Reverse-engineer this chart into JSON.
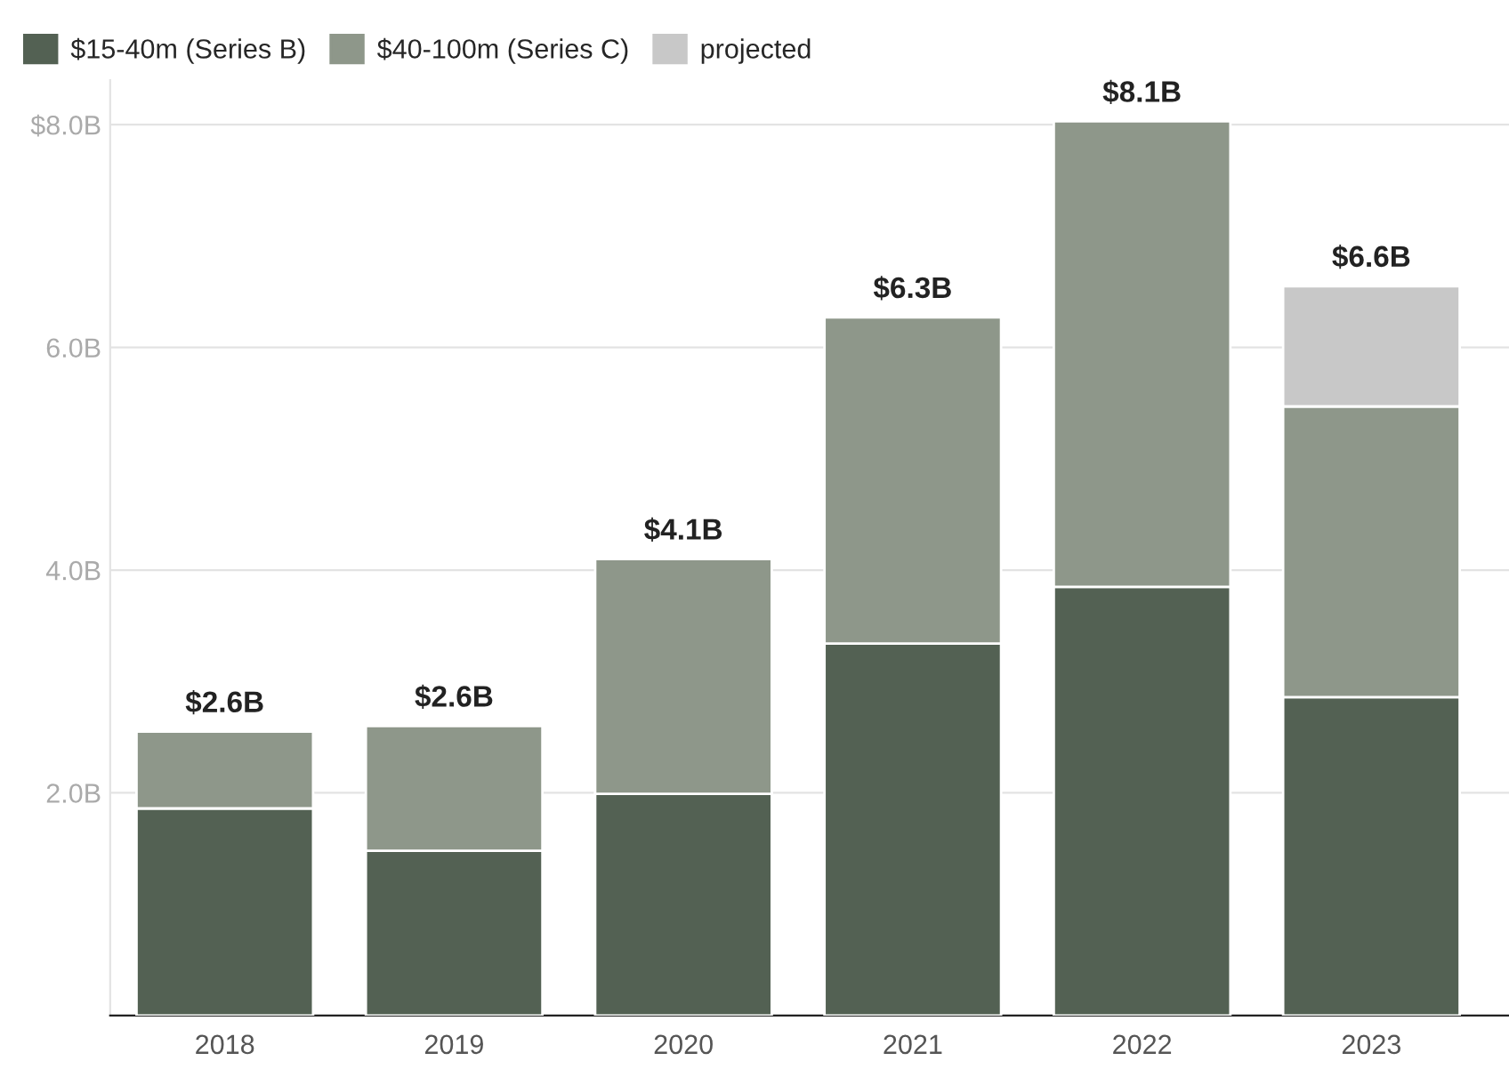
{
  "chart_data": {
    "type": "bar",
    "stacked": true,
    "categories": [
      "2018",
      "2019",
      "2020",
      "2021",
      "2022",
      "2023"
    ],
    "series": [
      {
        "name": "$15-40m (Series B)",
        "color": "#536153",
        "values": [
          1.86,
          1.48,
          1.99,
          3.34,
          3.85,
          2.86
        ]
      },
      {
        "name": "$40-100m (Series C)",
        "color": "#8e978a",
        "values": [
          0.69,
          1.12,
          2.11,
          2.93,
          4.18,
          2.61
        ]
      },
      {
        "name": "projected",
        "color": "#c8c8c8",
        "values": [
          null,
          null,
          null,
          null,
          null,
          1.08
        ]
      }
    ],
    "totals": [
      "$2.6B",
      "$2.6B",
      "$4.1B",
      "$6.3B",
      "$8.1B",
      "$6.6B"
    ],
    "ylim": [
      0,
      8.4
    ],
    "yticks": [
      {
        "value": 0,
        "label": null
      },
      {
        "value": 2,
        "label": "2.0B"
      },
      {
        "value": 4,
        "label": "4.0B"
      },
      {
        "value": 6,
        "label": "6.0B"
      },
      {
        "value": 8,
        "label": "$8.0B"
      }
    ],
    "grid": "y",
    "legend": "top left"
  }
}
